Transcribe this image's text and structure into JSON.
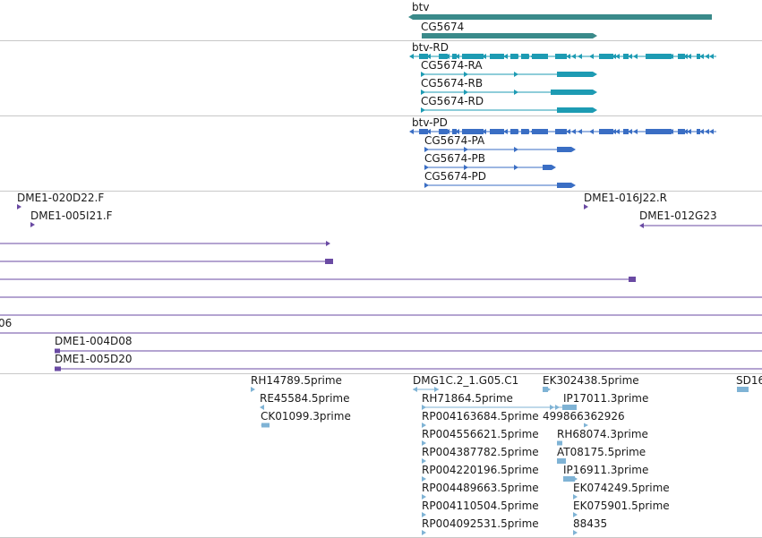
{
  "colors": {
    "gene": "#3a8a8a",
    "transcript_rd": "#1d9bb3",
    "transcript_pd": "#3a6ec4",
    "clone": "#6a4aa3",
    "est": "#7fb3d5",
    "divider": "#c8c8c8"
  },
  "tracks": {
    "genes": {
      "labels": [
        "btv",
        "CG5674"
      ]
    },
    "transcripts_rd": {
      "labels": [
        "btv-RD",
        "CG5674-RA",
        "CG5674-RB",
        "CG5674-RD"
      ]
    },
    "transcripts_pd": {
      "labels": [
        "btv-PD",
        "CG5674-PA",
        "CG5674-PB",
        "CG5674-PD"
      ]
    },
    "clones": {
      "labels": [
        "DME1-020D22.F",
        "DME1-005I21.F",
        "DME1-016J22.R",
        "DME1-012G23",
        "06",
        "DME1-004D08",
        "DME1-005D20"
      ]
    },
    "ests": {
      "labels": [
        "RH14789.5prime",
        "RE45584.5prime",
        "CK01099.3prime",
        "DMG1C.2_1.G05.C1",
        "RH71864.5prime",
        "RP004163684.5prime",
        "RP004556621.5prime",
        "RP004387782.5prime",
        "RP004220196.5prime",
        "RP004489663.5prime",
        "RP004110504.5prime",
        "RP004092531.5prime",
        "EK302438.5prime",
        "IP17011.3prime",
        "499866362926",
        "RH68074.3prime",
        "AT08175.5prime",
        "IP16911.3prime",
        "EK074249.5prime",
        "EK075901.5prime",
        "88435",
        "SD16"
      ]
    }
  }
}
